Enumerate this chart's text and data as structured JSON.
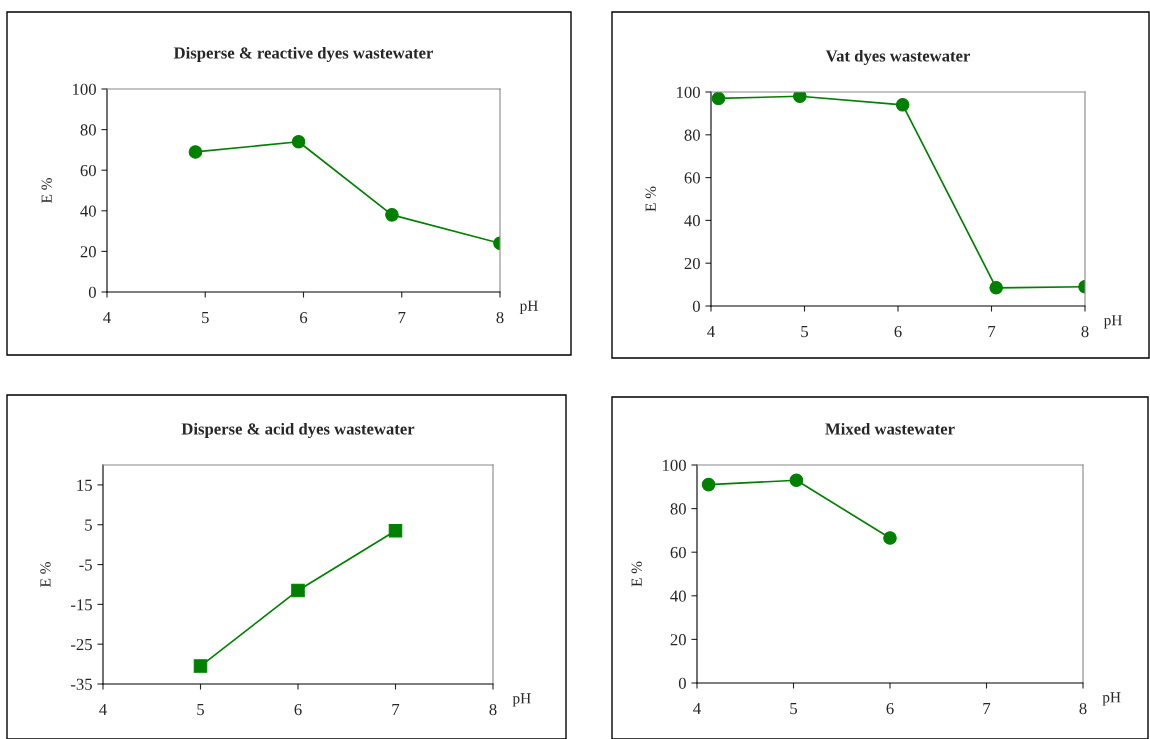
{
  "chart_data": [
    {
      "type": "line",
      "title": "Disperse & reactive dyes wastewater",
      "xlabel": "pH",
      "ylabel": "E %",
      "x": [
        4.9,
        5.95,
        6.9,
        8
      ],
      "series": [
        {
          "color": "#008000",
          "values": [
            69,
            74,
            38,
            24
          ]
        }
      ],
      "xlim": [
        4,
        8
      ],
      "xticks": [
        4,
        5,
        6,
        7,
        8
      ],
      "ylim": [
        0,
        100
      ],
      "yticks": [
        0,
        20,
        40,
        60,
        80,
        100
      ],
      "marker": "circle",
      "line_style": "solid"
    },
    {
      "type": "line",
      "title": "Vat dyes wastewater",
      "xlabel": "pH",
      "ylabel": "E %",
      "x": [
        4.08,
        4.95,
        6.05,
        7.05,
        8
      ],
      "series": [
        {
          "color": "#008000",
          "values": [
            97,
            98,
            94,
            8.5,
            9
          ]
        }
      ],
      "xlim": [
        4,
        8
      ],
      "xticks": [
        4,
        5,
        6,
        7,
        8
      ],
      "ylim": [
        0,
        100
      ],
      "yticks": [
        0,
        20,
        40,
        60,
        80,
        100
      ],
      "marker": "circle",
      "line_style": "solid"
    },
    {
      "type": "line",
      "title": "Disperse & acid dyes wastewater",
      "xlabel": "pH",
      "ylabel": "E %",
      "x": [
        5,
        6,
        7
      ],
      "series": [
        {
          "color": "#008000",
          "values": [
            -30.5,
            -11.5,
            3.5
          ]
        }
      ],
      "xlim": [
        4,
        8
      ],
      "xticks": [
        4,
        5,
        6,
        7,
        8
      ],
      "ylim": [
        -35,
        20
      ],
      "yticks": [
        -35,
        -25,
        -15,
        -5,
        5,
        15
      ],
      "marker": "square",
      "line_style": "solid"
    },
    {
      "type": "line",
      "title": "Mixed wastewater",
      "xlabel": "pH",
      "ylabel": "E %",
      "x": [
        4.12,
        5.03,
        6
      ],
      "series": [
        {
          "color": "#008000",
          "values": [
            91,
            93,
            66.5
          ]
        }
      ],
      "xlim": [
        4,
        8
      ],
      "xticks": [
        4,
        5,
        6,
        7,
        8
      ],
      "ylim": [
        0,
        100
      ],
      "yticks": [
        0,
        20,
        40,
        60,
        80,
        100
      ],
      "marker": "circle",
      "line_style": "solid"
    }
  ]
}
